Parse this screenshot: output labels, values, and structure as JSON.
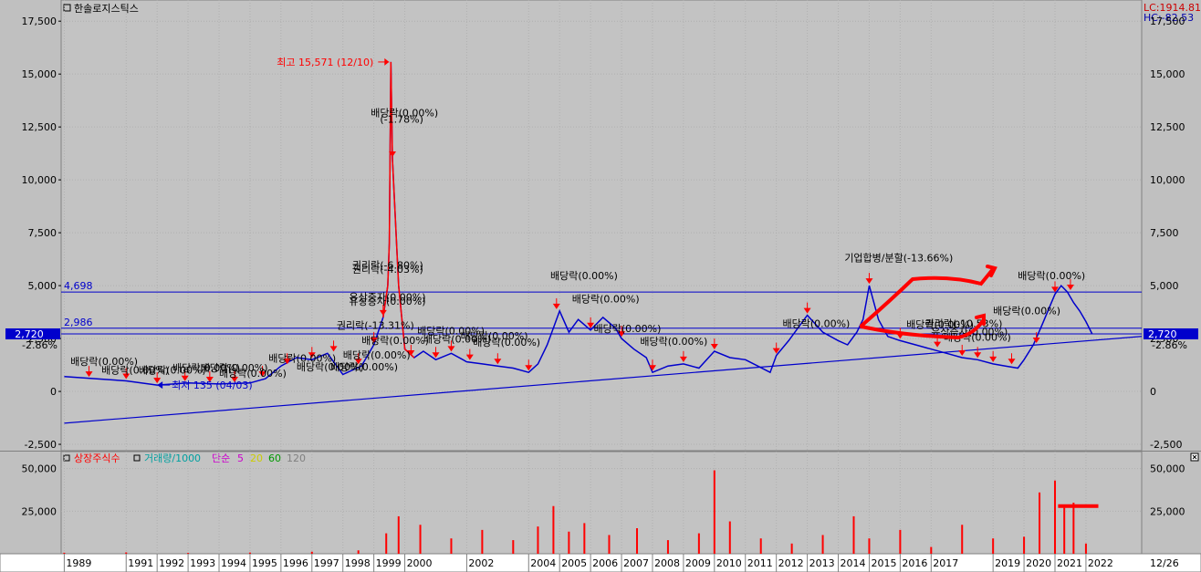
{
  "window": {
    "title": "한솔로지스틱스",
    "right_date": "12/26",
    "lc": "LC:1914.81",
    "hc": "HC:-82.53"
  },
  "colors": {
    "price_line": "#0000cc",
    "price_peak": "#ff0000",
    "marker": "#ff0000",
    "hline": "#0000cc",
    "listed_shares": "#ff0000",
    "volume": "#00a0a0",
    "sma5": "#cc00cc",
    "sma20": "#cccc00",
    "sma60": "#009900",
    "sma120": "#808080"
  },
  "chart_data": [
    {
      "type": "line",
      "title": "한솔로지스틱스",
      "yticks": [
        "17,500",
        "15,000",
        "12,500",
        "10,000",
        "7,500",
        "5,000",
        "2,500",
        "0",
        "-2,500"
      ],
      "ylim": [
        -2800,
        18500
      ],
      "xticks": [
        "1989",
        "1991",
        "1992",
        "1993",
        "1994",
        "1995",
        "1996",
        "1997",
        "1998",
        "1999",
        "2000",
        "2002",
        "2004",
        "2005",
        "2006",
        "2007",
        "2008",
        "2009",
        "2010",
        "2011",
        "2012",
        "2013",
        "2014",
        "2015",
        "2016",
        "2017",
        "2019",
        "2020",
        "2021",
        "2022"
      ],
      "x": [
        1989,
        1990,
        1991,
        1992,
        1993,
        1994,
        1995,
        1995.5,
        1996,
        1996.5,
        1997,
        1997.5,
        1998,
        1998.6,
        1999,
        1999.3,
        1999.45,
        1999.5,
        1999.55,
        1999.6,
        1999.7,
        1999.8,
        1999.9,
        2000,
        2000.3,
        2000.6,
        2001,
        2001.5,
        2002,
        2002.5,
        2003,
        2003.5,
        2004,
        2004.3,
        2004.6,
        2004.8,
        2005,
        2005.3,
        2005.6,
        2006,
        2006.4,
        2006.8,
        2007,
        2007.4,
        2007.8,
        2008,
        2008.5,
        2009,
        2009.5,
        2010,
        2010.5,
        2011,
        2011.4,
        2011.8,
        2012,
        2012.4,
        2012.8,
        2013,
        2013.5,
        2014,
        2014.3,
        2014.6,
        2014.8,
        2015,
        2015.3,
        2015.6,
        2016,
        2016.5,
        2017,
        2017.5,
        2018,
        2018.5,
        2019,
        2019.4,
        2019.8,
        2020,
        2020.3,
        2020.6,
        2021,
        2021.2,
        2021.4,
        2021.6,
        2021.8,
        2022,
        2022.2
      ],
      "values": [
        700,
        600,
        500,
        300,
        400,
        350,
        400,
        600,
        1200,
        1600,
        1500,
        1800,
        800,
        1200,
        2200,
        3500,
        5000,
        7000,
        15571,
        11000,
        8000,
        5000,
        3500,
        2000,
        1600,
        1900,
        1500,
        1800,
        1400,
        1300,
        1200,
        1100,
        900,
        1300,
        2200,
        3000,
        3800,
        2800,
        3400,
        2900,
        3500,
        3000,
        2500,
        2000,
        1600,
        900,
        1200,
        1300,
        1100,
        1900,
        1600,
        1500,
        1200,
        900,
        1700,
        2400,
        3200,
        3600,
        2800,
        2400,
        2200,
        2800,
        3400,
        5000,
        3400,
        2600,
        2400,
        2200,
        2000,
        1800,
        1600,
        1500,
        1300,
        1200,
        1100,
        1500,
        2200,
        3200,
        4600,
        5000,
        4700,
        4200,
        3800,
        3300,
        2720
      ],
      "peak_label": "최고 15,571 (12/10)",
      "trough_label": "최저 135 (04/03)",
      "hlines": [
        {
          "value": 4698,
          "label": "4,698"
        },
        {
          "value": 2986,
          "label": "2,986"
        }
      ],
      "current": {
        "value": "2,720",
        "change": "-2.86%",
        "y": 2720
      },
      "trendline": {
        "from": [
          1989,
          -1500
        ],
        "to": [
          2023.8,
          2600
        ]
      },
      "annotations": [
        {
          "x": 1989.2,
          "y": 1250,
          "text": "배당락(0.00%)"
        },
        {
          "x": 1990.2,
          "y": 850,
          "text": "배당락(0.00%)"
        },
        {
          "x": 1991.4,
          "y": 850,
          "text": "배당락(0.00%)"
        },
        {
          "x": 1992.5,
          "y": 950,
          "text": "배당락(0.00%)"
        },
        {
          "x": 1993.4,
          "y": 950,
          "text": "배당락(0.00%)"
        },
        {
          "x": 1994.0,
          "y": 700,
          "text": "배당락(0.00%)"
        },
        {
          "x": 1995.6,
          "y": 1400,
          "text": "배당락(0.00%)"
        },
        {
          "x": 1996.5,
          "y": 1000,
          "text": "배당락(0.00%)"
        },
        {
          "x": 1997.6,
          "y": 1000,
          "text": "배당락(0.00%)"
        },
        {
          "x": 1998.9,
          "y": 13000,
          "text": "배당락(0.00%)"
        },
        {
          "x": 1999.2,
          "y": 12700,
          "text": "(-1.78%)"
        },
        {
          "x": 1998.3,
          "y": 5800,
          "text": "권리락(-6.80%)"
        },
        {
          "x": 1998.3,
          "y": 5600,
          "text": "권리락(-4.03%)"
        },
        {
          "x": 1998.2,
          "y": 4300,
          "text": "유상증자(0.00%)"
        },
        {
          "x": 1998.2,
          "y": 4100,
          "text": "유상증자(0.00%)"
        },
        {
          "x": 1997.8,
          "y": 2950,
          "text": "권리락(-13.31%)"
        },
        {
          "x": 1998.6,
          "y": 2250,
          "text": "배당락(0.00%)"
        },
        {
          "x": 1998.0,
          "y": 1550,
          "text": "배당락(0.00%)"
        },
        {
          "x": 2000.4,
          "y": 2700,
          "text": "배당락(0.00%)"
        },
        {
          "x": 2000.6,
          "y": 2300,
          "text": "배당락(0.00%)"
        },
        {
          "x": 2001.8,
          "y": 2450,
          "text": "배당락(0.00%)"
        },
        {
          "x": 2002.2,
          "y": 2150,
          "text": "배당락(0.00%)"
        },
        {
          "x": 2004.7,
          "y": 5300,
          "text": "배당락(0.00%)"
        },
        {
          "x": 2005.4,
          "y": 4200,
          "text": "배당락(0.00%)"
        },
        {
          "x": 2006.1,
          "y": 2800,
          "text": "배당락(0.00%)"
        },
        {
          "x": 2007.6,
          "y": 2200,
          "text": "배당락(0.00%)"
        },
        {
          "x": 2012.2,
          "y": 3050,
          "text": "배당락(0.00%)"
        },
        {
          "x": 2014.2,
          "y": 6150,
          "text": "기업합병/분할(-13.66%)"
        },
        {
          "x": 2016.2,
          "y": 3000,
          "text": "배당락(0.00%)"
        },
        {
          "x": 2016.8,
          "y": 3050,
          "text": "권리락(-10.53%)"
        },
        {
          "x": 2017.0,
          "y": 2650,
          "text": "유상증자(0.00%)"
        },
        {
          "x": 2017.4,
          "y": 2400,
          "text": "배당락(0.00%)"
        },
        {
          "x": 2019.0,
          "y": 3650,
          "text": "배당락(0.00%)"
        },
        {
          "x": 2019.8,
          "y": 5300,
          "text": "배당락(0.00%)"
        }
      ],
      "markers": [
        1989.8,
        1991.0,
        1992.0,
        1992.9,
        1993.7,
        1994.5,
        1995.4,
        1996.2,
        1997.0,
        1997.7,
        1998.5,
        1999.0,
        1999.3,
        1999.6,
        2000.2,
        2001.0,
        2001.5,
        2002.1,
        2003.0,
        2004.0,
        2004.9,
        2006.0,
        2007.0,
        2008.0,
        2009.0,
        2010.0,
        2012.0,
        2013.0,
        2015.0,
        2016.0,
        2017.2,
        2018.0,
        2018.5,
        2019.0,
        2019.6,
        2020.4,
        2021.0,
        2021.5
      ]
    },
    {
      "type": "bar",
      "legend": [
        "상장주식수",
        "거래량/1000",
        "단순",
        "5",
        "20",
        "60",
        "120"
      ],
      "yticks": [
        "50,000",
        "25,000"
      ],
      "ylim": [
        0,
        60000
      ],
      "x": [
        1989,
        1991,
        1993,
        1995,
        1997,
        1998.5,
        1999.4,
        1999.8,
        2000.5,
        2001.5,
        2002.5,
        2003.5,
        2004.3,
        2004.8,
        2005.3,
        2005.8,
        2006.6,
        2007.5,
        2008.5,
        2009.5,
        2010.0,
        2010.5,
        2011.5,
        2012.5,
        2013.5,
        2014.5,
        2015.0,
        2016.0,
        2017.0,
        2018.0,
        2019.0,
        2020.0,
        2020.5,
        2021.0,
        2021.3,
        2021.6,
        2022.0
      ],
      "values": [
        600,
        800,
        500,
        700,
        1200,
        2000,
        12000,
        22000,
        17000,
        9000,
        14000,
        8000,
        16000,
        28000,
        13000,
        18000,
        11000,
        15000,
        8000,
        12000,
        49000,
        19000,
        9000,
        6000,
        11000,
        22000,
        9000,
        14000,
        4000,
        17000,
        9000,
        10000,
        36000,
        43000,
        27000,
        30000,
        6000
      ],
      "reference_line": {
        "value": 28000,
        "from_x": 2021.1,
        "to_x": 2022.4
      }
    }
  ]
}
